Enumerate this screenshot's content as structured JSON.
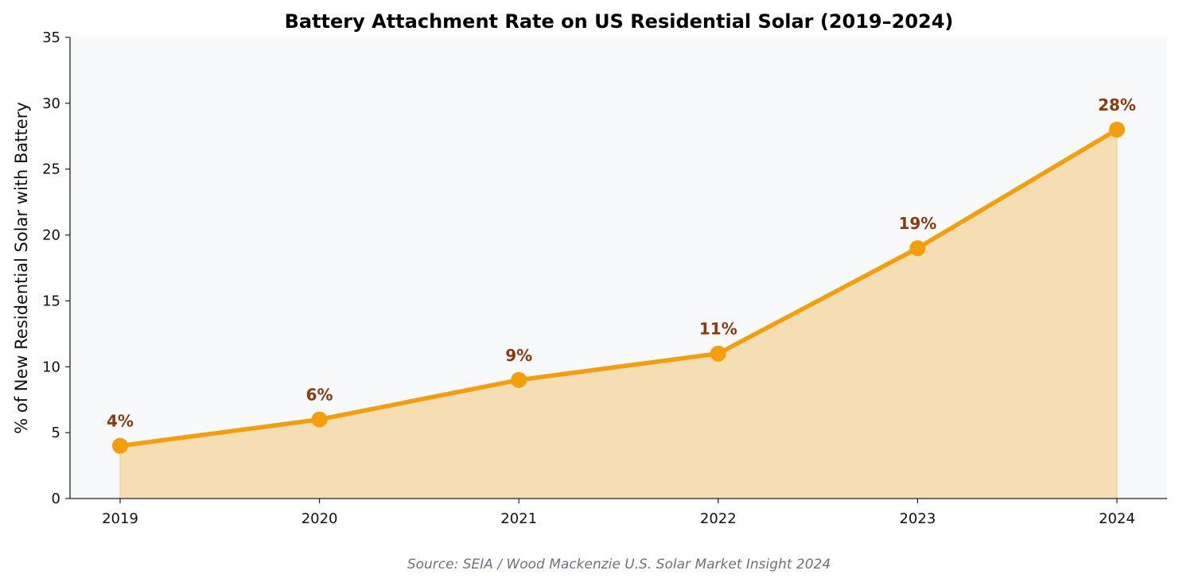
{
  "chart_data": {
    "type": "area",
    "title": "Battery Attachment Rate on US Residential Solar (2019–2024)",
    "xlabel": "",
    "ylabel": "% of New Residential Solar with Battery",
    "categories": [
      "2019",
      "2020",
      "2021",
      "2022",
      "2023",
      "2024"
    ],
    "values": [
      4,
      6,
      9,
      11,
      19,
      28
    ],
    "data_labels": [
      "4%",
      "6%",
      "9%",
      "11%",
      "19%",
      "28%"
    ],
    "ylim": [
      0,
      35
    ],
    "yticks": [
      "0",
      "5",
      "10",
      "15",
      "20",
      "25",
      "30",
      "35"
    ],
    "grid": false,
    "source": "Source: SEIA / Wood Mackenzie U.S. Solar Market Insight 2024",
    "colors": {
      "line": "#F59E0B",
      "fill": "#F5DEB3",
      "label": "#8B3A0F",
      "plot_background": "#F8F9FB",
      "source": "#6B7280"
    }
  }
}
